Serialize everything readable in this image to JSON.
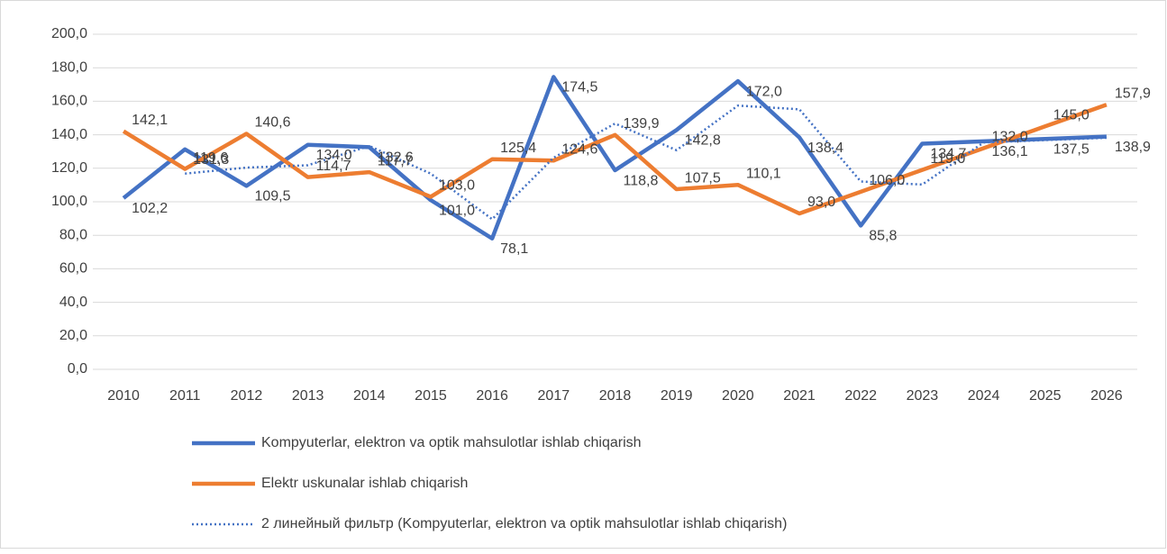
{
  "chart_data": {
    "type": "line",
    "categories": [
      "2010",
      "2011",
      "2012",
      "2013",
      "2014",
      "2015",
      "2016",
      "2017",
      "2018",
      "2019",
      "2020",
      "2021",
      "2022",
      "2023",
      "2024",
      "2025",
      "2026"
    ],
    "ylim": [
      0,
      200
    ],
    "yticks": [
      {
        "value": 0,
        "label": "0,0"
      },
      {
        "value": 20,
        "label": "20,0"
      },
      {
        "value": 40,
        "label": "40,0"
      },
      {
        "value": 60,
        "label": "60,0"
      },
      {
        "value": 80,
        "label": "80,0"
      },
      {
        "value": 100,
        "label": "100,0"
      },
      {
        "value": 120,
        "label": "120,0"
      },
      {
        "value": 140,
        "label": "140,0"
      },
      {
        "value": 160,
        "label": "160,0"
      },
      {
        "value": 180,
        "label": "180,0"
      },
      {
        "value": 200,
        "label": "200,0"
      }
    ],
    "grid": true,
    "series": [
      {
        "name": "Kompyuterlar, elektron va optik mahsulotlar ishlab chiqarish",
        "color": "#4472c4",
        "style": "solid",
        "values": [
          102.2,
          131.3,
          109.5,
          134.0,
          132.6,
          101.0,
          78.1,
          174.5,
          118.8,
          142.8,
          172.0,
          138.4,
          85.8,
          134.7,
          136.1,
          137.5,
          138.9
        ],
        "value_labels": [
          "102,2",
          "131,3",
          "109,5",
          "134,0",
          "132,6",
          "101,0",
          "78,1",
          "174,5",
          "118,8",
          "142,8",
          "172,0",
          "138,4",
          "85,8",
          "134,7",
          "136,1",
          "137,5",
          "138,9"
        ]
      },
      {
        "name": "Elektr uskunalar ishlab chiqarish",
        "color": "#ed7d31",
        "style": "solid",
        "values": [
          142.1,
          119.6,
          140.6,
          114.7,
          117.7,
          103.0,
          125.4,
          124.6,
          139.9,
          107.5,
          110.1,
          93.0,
          106.0,
          119.0,
          132.0,
          145.0,
          157.9
        ],
        "value_labels": [
          "142,1",
          "119,6",
          "140,6",
          "114,7",
          "117,7",
          "103,0",
          "125,4",
          "124,6",
          "139,9",
          "107,5",
          "110,1",
          "93,0",
          "106,0",
          "119,0",
          "132,0",
          "145,0",
          "157,9"
        ]
      },
      {
        "name": "2 линейный фильтр (Kompyuterlar, elektron va optik mahsulotlar ishlab chiqarish)",
        "color": "#4472c4",
        "style": "dotted",
        "values": [
          null,
          116.8,
          120.4,
          121.8,
          133.3,
          116.8,
          89.6,
          126.3,
          146.7,
          130.8,
          157.4,
          155.2,
          112.1,
          110.3,
          135.4,
          136.8,
          138.2
        ]
      }
    ]
  }
}
